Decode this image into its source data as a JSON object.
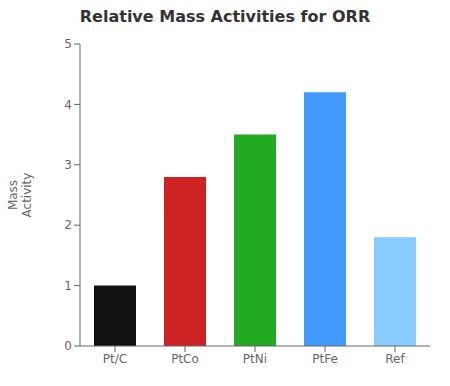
{
  "chart_data": {
    "type": "bar",
    "title": "Relative Mass Activities for ORR",
    "y_label": "Mass\nActivity",
    "categories": [
      "Pt/C",
      "PtCo",
      "PtNi",
      "PtFe",
      "Ref"
    ],
    "values": [
      1.0,
      2.8,
      3.5,
      4.2,
      1.8
    ],
    "colors": [
      "#111111",
      "#cc2222",
      "#22aa22",
      "#4499ff",
      "#88ccff"
    ],
    "ylim": [
      0,
      5
    ],
    "yticks": [
      0,
      1,
      2,
      3,
      4,
      5
    ],
    "grid": false
  }
}
